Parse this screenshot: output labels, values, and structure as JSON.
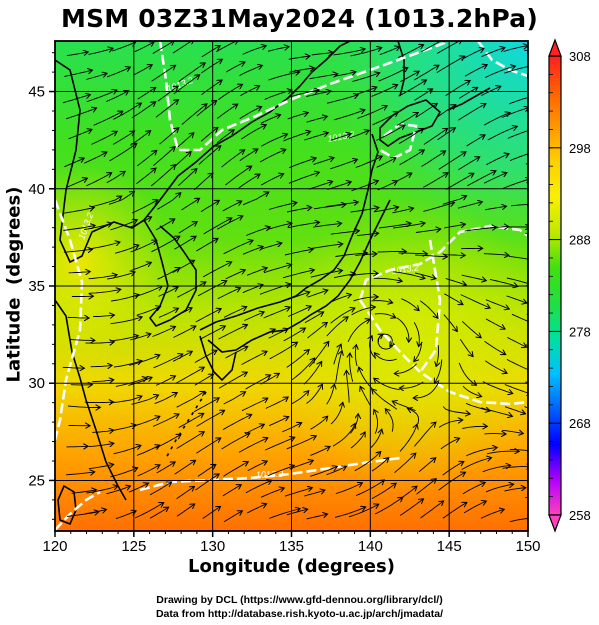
{
  "title": "MSM 03Z31May2024 (1013.2hPa)",
  "x_axis": {
    "label": "Longitude (degrees)",
    "ticks": [
      120,
      125,
      130,
      135,
      140,
      145,
      150
    ],
    "tick_labels": [
      "120",
      "125",
      "130",
      "135",
      "140",
      "145",
      "150"
    ],
    "range": [
      120,
      150
    ]
  },
  "y_axis": {
    "label": "Latitude  (degrees)",
    "ticks": [
      25,
      30,
      35,
      40,
      45
    ],
    "tick_labels": [
      "25",
      "30",
      "35",
      "40",
      "45"
    ],
    "range": [
      22.4,
      47.6
    ]
  },
  "colorbar": {
    "min": 258,
    "max": 308,
    "labels": [
      "308",
      "298",
      "288",
      "278",
      "268",
      "258"
    ],
    "label_values": [
      308,
      298,
      288,
      278,
      268,
      258
    ],
    "stops": [
      "#ff40c0",
      "#b000ff",
      "#0000ff",
      "#0060ff",
      "#00c0ff",
      "#00e0a0",
      "#20e040",
      "#40e010",
      "#c0e800",
      "#f8f000",
      "#ffd000",
      "#ff9800",
      "#ff6000",
      "#ff2020"
    ]
  },
  "isotherm_labels": [
    "1013.2",
    "1013.2",
    "1013.2",
    "1013.2",
    "1013.2"
  ],
  "credits": {
    "line1": "Drawing by DCL (https://www.gfd-dennou.org/library/dcl/)",
    "line2": "Data from http://database.rish.kyoto-u.ac.jp/arch/jmadata/"
  },
  "colors": {
    "frame": "#000000",
    "contour": "#ffffff",
    "coast": "#000000"
  }
}
